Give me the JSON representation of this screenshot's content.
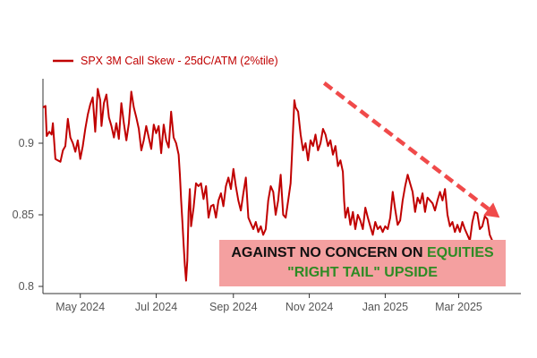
{
  "chart_data": {
    "type": "line",
    "title": "",
    "xlabel": "",
    "ylabel": "",
    "ylim": [
      0.795,
      0.945
    ],
    "y_ticks": [
      {
        "value": 0.8,
        "label": "0.8"
      },
      {
        "value": 0.85,
        "label": "0.85"
      },
      {
        "value": 0.9,
        "label": "0.9"
      }
    ],
    "x_ticks": [
      {
        "value": 31,
        "label": "May 2024"
      },
      {
        "value": 92,
        "label": "Jul 2024"
      },
      {
        "value": 154,
        "label": "Sep 2024"
      },
      {
        "value": 215,
        "label": "Nov 2024"
      },
      {
        "value": 276,
        "label": "Jan 2025"
      },
      {
        "value": 335,
        "label": "Mar 2025"
      }
    ],
    "xlim": [
      1,
      385
    ],
    "x_unit": "days since Apr 1 2024",
    "series": [
      {
        "name": "SPX 3M Call Skew - 25dC/ATM (2%tile)",
        "color": "#c00000",
        "points": [
          [
            1,
            0.925
          ],
          [
            3,
            0.926
          ],
          [
            4,
            0.905
          ],
          [
            6,
            0.908
          ],
          [
            8,
            0.906
          ],
          [
            9,
            0.914
          ],
          [
            11,
            0.889
          ],
          [
            13,
            0.888
          ],
          [
            15,
            0.887
          ],
          [
            17,
            0.895
          ],
          [
            19,
            0.898
          ],
          [
            21,
            0.917
          ],
          [
            23,
            0.904
          ],
          [
            25,
            0.9
          ],
          [
            27,
            0.894
          ],
          [
            29,
            0.902
          ],
          [
            31,
            0.889
          ],
          [
            33,
            0.898
          ],
          [
            35,
            0.91
          ],
          [
            37,
            0.92
          ],
          [
            39,
            0.927
          ],
          [
            41,
            0.932
          ],
          [
            43,
            0.908
          ],
          [
            45,
            0.938
          ],
          [
            47,
            0.93
          ],
          [
            48,
            0.912
          ],
          [
            50,
            0.928
          ],
          [
            52,
            0.934
          ],
          [
            54,
            0.918
          ],
          [
            56,
            0.912
          ],
          [
            58,
            0.904
          ],
          [
            60,
            0.914
          ],
          [
            62,
            0.903
          ],
          [
            64,
            0.928
          ],
          [
            66,
            0.914
          ],
          [
            68,
            0.902
          ],
          [
            70,
            0.914
          ],
          [
            72,
            0.936
          ],
          [
            74,
            0.925
          ],
          [
            76,
            0.918
          ],
          [
            78,
            0.91
          ],
          [
            80,
            0.895
          ],
          [
            82,
            0.902
          ],
          [
            84,
            0.912
          ],
          [
            86,
            0.904
          ],
          [
            88,
            0.896
          ],
          [
            90,
            0.913
          ],
          [
            92,
            0.907
          ],
          [
            94,
            0.912
          ],
          [
            96,
            0.893
          ],
          [
            98,
            0.913
          ],
          [
            100,
            0.902
          ],
          [
            102,
            0.897
          ],
          [
            104,
            0.922
          ],
          [
            106,
            0.904
          ],
          [
            108,
            0.9
          ],
          [
            110,
            0.892
          ],
          [
            111,
            0.878
          ],
          [
            112,
            0.86
          ],
          [
            113,
            0.845
          ],
          [
            114,
            0.83
          ],
          [
            115,
            0.815
          ],
          [
            116,
            0.804
          ],
          [
            117,
            0.818
          ],
          [
            118,
            0.852
          ],
          [
            119,
            0.868
          ],
          [
            120,
            0.842
          ],
          [
            122,
            0.855
          ],
          [
            124,
            0.872
          ],
          [
            126,
            0.87
          ],
          [
            128,
            0.872
          ],
          [
            130,
            0.861
          ],
          [
            132,
            0.87
          ],
          [
            134,
            0.848
          ],
          [
            136,
            0.856
          ],
          [
            138,
            0.857
          ],
          [
            140,
            0.848
          ],
          [
            142,
            0.86
          ],
          [
            144,
            0.865
          ],
          [
            146,
            0.856
          ],
          [
            148,
            0.87
          ],
          [
            150,
            0.876
          ],
          [
            152,
            0.868
          ],
          [
            154,
            0.882
          ],
          [
            156,
            0.87
          ],
          [
            158,
            0.86
          ],
          [
            160,
            0.853
          ],
          [
            162,
            0.865
          ],
          [
            164,
            0.876
          ],
          [
            166,
            0.848
          ],
          [
            168,
            0.844
          ],
          [
            170,
            0.84
          ],
          [
            172,
            0.845
          ],
          [
            174,
            0.838
          ],
          [
            176,
            0.842
          ],
          [
            178,
            0.836
          ],
          [
            180,
            0.84
          ],
          [
            182,
            0.86
          ],
          [
            184,
            0.87
          ],
          [
            186,
            0.866
          ],
          [
            188,
            0.85
          ],
          [
            190,
            0.86
          ],
          [
            192,
            0.878
          ],
          [
            194,
            0.85
          ],
          [
            196,
            0.848
          ],
          [
            198,
            0.86
          ],
          [
            200,
            0.872
          ],
          [
            201,
            0.89
          ],
          [
            202,
            0.91
          ],
          [
            203,
            0.93
          ],
          [
            204,
            0.925
          ],
          [
            206,
            0.922
          ],
          [
            208,
            0.906
          ],
          [
            210,
            0.895
          ],
          [
            212,
            0.9
          ],
          [
            214,
            0.888
          ],
          [
            216,
            0.902
          ],
          [
            218,
            0.898
          ],
          [
            220,
            0.906
          ],
          [
            222,
            0.895
          ],
          [
            224,
            0.9
          ],
          [
            226,
            0.91
          ],
          [
            228,
            0.906
          ],
          [
            230,
            0.898
          ],
          [
            232,
            0.902
          ],
          [
            234,
            0.892
          ],
          [
            236,
            0.898
          ],
          [
            238,
            0.884
          ],
          [
            240,
            0.888
          ],
          [
            242,
            0.88
          ],
          [
            243,
            0.86
          ],
          [
            244,
            0.848
          ],
          [
            246,
            0.855
          ],
          [
            248,
            0.843
          ],
          [
            250,
            0.852
          ],
          [
            252,
            0.84
          ],
          [
            254,
            0.85
          ],
          [
            256,
            0.846
          ],
          [
            258,
            0.84
          ],
          [
            260,
            0.855
          ],
          [
            262,
            0.848
          ],
          [
            264,
            0.842
          ],
          [
            266,
            0.836
          ],
          [
            268,
            0.845
          ],
          [
            270,
            0.84
          ],
          [
            272,
            0.842
          ],
          [
            274,
            0.838
          ],
          [
            276,
            0.842
          ],
          [
            278,
            0.84
          ],
          [
            280,
            0.848
          ],
          [
            282,
            0.866
          ],
          [
            284,
            0.854
          ],
          [
            286,
            0.843
          ],
          [
            288,
            0.846
          ],
          [
            290,
            0.86
          ],
          [
            292,
            0.87
          ],
          [
            294,
            0.878
          ],
          [
            296,
            0.872
          ],
          [
            298,
            0.866
          ],
          [
            300,
            0.852
          ],
          [
            302,
            0.862
          ],
          [
            304,
            0.858
          ],
          [
            306,
            0.865
          ],
          [
            308,
            0.852
          ],
          [
            310,
            0.862
          ],
          [
            312,
            0.86
          ],
          [
            314,
            0.858
          ],
          [
            316,
            0.853
          ],
          [
            318,
            0.86
          ],
          [
            320,
            0.866
          ],
          [
            322,
            0.86
          ],
          [
            324,
            0.868
          ],
          [
            326,
            0.85
          ],
          [
            328,
            0.842
          ],
          [
            330,
            0.845
          ],
          [
            332,
            0.838
          ],
          [
            334,
            0.843
          ],
          [
            336,
            0.838
          ],
          [
            338,
            0.845
          ],
          [
            340,
            0.84
          ],
          [
            342,
            0.836
          ],
          [
            344,
            0.832
          ],
          [
            346,
            0.845
          ],
          [
            348,
            0.852
          ],
          [
            350,
            0.851
          ],
          [
            352,
            0.84
          ],
          [
            354,
            0.842
          ],
          [
            356,
            0.849
          ],
          [
            358,
            0.847
          ],
          [
            360,
            0.836
          ],
          [
            362,
            0.832
          ],
          [
            363,
            0.83
          ]
        ]
      }
    ],
    "last_marker": [
      363,
      0.83
    ],
    "trend_arrow": {
      "from": [
        227,
        0.942
      ],
      "to": [
        368,
        0.848
      ],
      "color": "#f04a4a"
    },
    "annotation": {
      "line1": "AGAINST NO CONCERN ON ",
      "line1_highlight": "EQUITIES",
      "line2": "\"RIGHT TAIL\" UPSIDE",
      "background": "#f4a0a0",
      "highlight_color": "#2e8b24"
    },
    "legend_position": "top-left",
    "grid": false
  }
}
